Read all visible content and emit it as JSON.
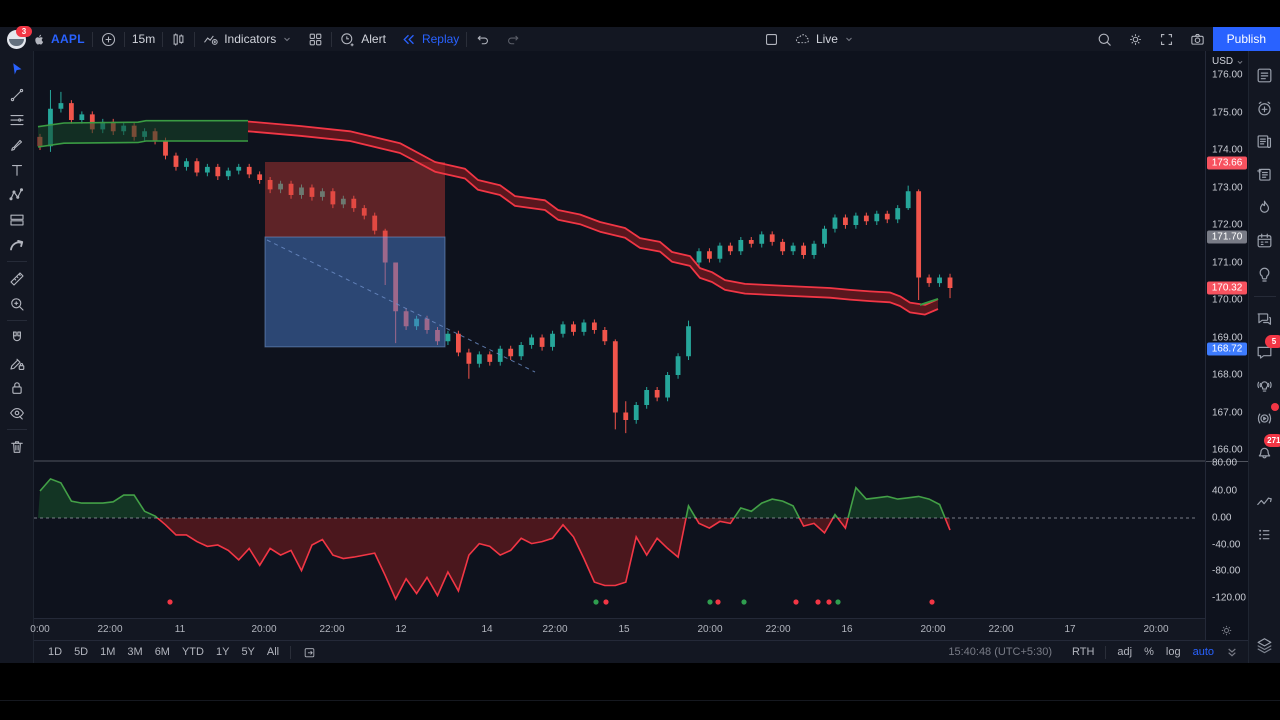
{
  "topbar": {
    "avatar_badge": "3",
    "symbol": "AAPL",
    "interval": "15m",
    "indicators_label": "Indicators",
    "alert_label": "Alert",
    "replay_label": "Replay",
    "live_label": "Live",
    "publish_label": "Publish"
  },
  "left_toolbar": {
    "tools": [
      {
        "name": "cursor",
        "active": true
      },
      {
        "name": "trend-line"
      },
      {
        "name": "fib-retracement"
      },
      {
        "name": "brush"
      },
      {
        "name": "text-tool"
      },
      {
        "name": "xabcd-pattern"
      },
      {
        "name": "long-position"
      },
      {
        "name": "arrow-marker",
        "divider_after": true
      },
      {
        "name": "ruler"
      },
      {
        "name": "zoom-in",
        "divider_after": true
      },
      {
        "name": "magnet"
      },
      {
        "name": "edit-lock"
      },
      {
        "name": "lock-all"
      },
      {
        "name": "hide-all",
        "divider_after": true
      },
      {
        "name": "remove-drawings"
      }
    ]
  },
  "right_sidebar": {
    "items": [
      {
        "name": "watchlist"
      },
      {
        "name": "alert-manager"
      },
      {
        "name": "news"
      },
      {
        "name": "notes"
      },
      {
        "name": "hotlists"
      },
      {
        "name": "calendar"
      },
      {
        "name": "ideas",
        "divider_after": true
      },
      {
        "name": "chats"
      },
      {
        "name": "private-chat",
        "badge": "5"
      },
      {
        "name": "ideas-stream"
      },
      {
        "name": "live-streams",
        "dot": true
      },
      {
        "name": "notifications",
        "badge": "271",
        "gap_after": true
      },
      {
        "name": "pine-editor"
      },
      {
        "name": "dom-panel"
      }
    ],
    "bottom_item": {
      "name": "object-tree"
    }
  },
  "price_axis": {
    "currency": "USD",
    "labels": [
      {
        "text": "176.00",
        "y": 75
      },
      {
        "text": "175.00",
        "y": 113
      },
      {
        "text": "174.00",
        "y": 150
      },
      {
        "text": "173.00",
        "y": 188
      },
      {
        "text": "172.00",
        "y": 225
      },
      {
        "text": "171.00",
        "y": 263
      },
      {
        "text": "170.00",
        "y": 300
      },
      {
        "text": "169.00",
        "y": 338
      },
      {
        "text": "168.00",
        "y": 375
      },
      {
        "text": "167.00",
        "y": 413
      },
      {
        "text": "166.00",
        "y": 450
      }
    ],
    "badges": [
      {
        "text": "173.66",
        "y": 163,
        "color": "#f7525f",
        "text_color": "#fff"
      },
      {
        "text": "171.70",
        "y": 237,
        "color": "#787b86",
        "text_color": "#fff"
      },
      {
        "text": "170.32",
        "y": 288,
        "color": "#f7525f",
        "text_color": "#fff"
      },
      {
        "text": "168.72",
        "y": 349,
        "color": "#3d7bfd",
        "text_color": "#fff"
      }
    ],
    "lower_labels": [
      {
        "text": "80.00",
        "y": 463
      },
      {
        "text": "40.00",
        "y": 491
      },
      {
        "text": "0.00",
        "y": 518
      },
      {
        "text": "-40.00",
        "y": 545
      },
      {
        "text": "-80.00",
        "y": 571
      },
      {
        "text": "-120.00",
        "y": 598
      }
    ]
  },
  "time_axis": {
    "labels": [
      {
        "text": "0:00",
        "x": 40
      },
      {
        "text": "22:00",
        "x": 110
      },
      {
        "text": "11",
        "x": 180
      },
      {
        "text": "20:00",
        "x": 264
      },
      {
        "text": "22:00",
        "x": 332
      },
      {
        "text": "12",
        "x": 401
      },
      {
        "text": "14",
        "x": 487
      },
      {
        "text": "22:00",
        "x": 555
      },
      {
        "text": "15",
        "x": 624
      },
      {
        "text": "20:00",
        "x": 710
      },
      {
        "text": "22:00",
        "x": 778
      },
      {
        "text": "16",
        "x": 847
      },
      {
        "text": "20:00",
        "x": 933
      },
      {
        "text": "22:00",
        "x": 1001
      },
      {
        "text": "17",
        "x": 1070
      },
      {
        "text": "20:00",
        "x": 1156
      }
    ]
  },
  "bottom_toolbar": {
    "ranges": [
      "1D",
      "5D",
      "1M",
      "3M",
      "6M",
      "YTD",
      "1Y",
      "5Y",
      "All"
    ],
    "clock": "15:40:48 (UTC+5:30)",
    "session": "RTH",
    "adj": "adj",
    "percent": "%",
    "log": "log",
    "auto": "auto"
  },
  "chart_data": {
    "type": "candlestick",
    "symbol": "AAPL",
    "interval": "15m",
    "price_pane": {
      "ylim": [
        165.7,
        176.64
      ],
      "candles": {
        "x0": 6,
        "dx": 10.46,
        "up_color": "#26a69a",
        "down_color": "#f1544b",
        "ohlc": [
          [
            174.35,
            174.1
          ],
          [
            174.1,
            175.1,
            175.6,
            173.95
          ],
          [
            175.1,
            175.25,
            175.55
          ],
          [
            175.25,
            174.8
          ],
          [
            174.8,
            174.95
          ],
          [
            174.95,
            174.55
          ],
          [
            174.55,
            174.75
          ],
          [
            174.75,
            174.5
          ],
          [
            174.5,
            174.65
          ],
          [
            174.65,
            174.35
          ],
          [
            174.35,
            174.5
          ],
          [
            174.5,
            174.25
          ],
          [
            174.25,
            173.85
          ],
          [
            173.85,
            173.55
          ],
          [
            173.55,
            173.7
          ],
          [
            173.7,
            173.4
          ],
          [
            173.4,
            173.55
          ],
          [
            173.55,
            173.3
          ],
          [
            173.3,
            173.45
          ],
          [
            173.45,
            173.55
          ],
          [
            173.55,
            173.35
          ],
          [
            173.35,
            173.2
          ],
          [
            173.2,
            172.95
          ],
          [
            172.95,
            173.1
          ],
          [
            173.1,
            172.8
          ],
          [
            172.8,
            173.0
          ],
          [
            173.0,
            172.75
          ],
          [
            172.75,
            172.9
          ],
          [
            172.9,
            172.55
          ],
          [
            172.55,
            172.7
          ],
          [
            172.7,
            172.45
          ],
          [
            172.45,
            172.25
          ],
          [
            172.25,
            171.85
          ],
          [
            171.85,
            171.0,
            171.9,
            170.4
          ],
          [
            171.0,
            169.7,
            171.0,
            168.85
          ],
          [
            169.7,
            169.3
          ],
          [
            169.3,
            169.5
          ],
          [
            169.5,
            169.2
          ],
          [
            169.2,
            168.9
          ],
          [
            168.9,
            169.1
          ],
          [
            169.1,
            168.6
          ],
          [
            168.6,
            168.3,
            168.7,
            167.9
          ],
          [
            168.3,
            168.55
          ],
          [
            168.55,
            168.35
          ],
          [
            168.35,
            168.7
          ],
          [
            168.7,
            168.5
          ],
          [
            168.5,
            168.8
          ],
          [
            168.8,
            169.0
          ],
          [
            169.0,
            168.75
          ],
          [
            168.75,
            169.1
          ],
          [
            169.1,
            169.35
          ],
          [
            169.35,
            169.15
          ],
          [
            169.15,
            169.4
          ],
          [
            169.4,
            169.2
          ],
          [
            169.2,
            168.9
          ],
          [
            168.9,
            167.0,
            168.95,
            166.55
          ],
          [
            167.0,
            166.8,
            167.3,
            166.45
          ],
          [
            166.8,
            167.2
          ],
          [
            167.2,
            167.6
          ],
          [
            167.6,
            167.4
          ],
          [
            167.4,
            168.0
          ],
          [
            168.0,
            168.5
          ],
          [
            168.5,
            169.3,
            169.45,
            168.4
          ],
          [
            171.0,
            171.3
          ],
          [
            171.3,
            171.1
          ],
          [
            171.1,
            171.45
          ],
          [
            171.45,
            171.3
          ],
          [
            171.3,
            171.6
          ],
          [
            171.6,
            171.5
          ],
          [
            171.5,
            171.75
          ],
          [
            171.75,
            171.55
          ],
          [
            171.55,
            171.3
          ],
          [
            171.3,
            171.45
          ],
          [
            171.45,
            171.2
          ],
          [
            171.2,
            171.5
          ],
          [
            171.5,
            171.9
          ],
          [
            171.9,
            172.2
          ],
          [
            172.2,
            172.0
          ],
          [
            172.0,
            172.25
          ],
          [
            172.25,
            172.1
          ],
          [
            172.1,
            172.3
          ],
          [
            172.3,
            172.15
          ],
          [
            172.15,
            172.45
          ],
          [
            172.45,
            172.9,
            173.05,
            172.4
          ],
          [
            172.9,
            170.6,
            172.95,
            170.0
          ],
          [
            170.6,
            170.45
          ],
          [
            170.45,
            170.6
          ],
          [
            170.6,
            170.32,
            170.7,
            170.05
          ]
        ]
      },
      "ribbon": {
        "green_top": [
          [
            4,
            174.62
          ],
          [
            30,
            174.72
          ],
          [
            104,
            174.74
          ],
          [
            112,
            174.78
          ],
          [
            214,
            174.78
          ]
        ],
        "green_bottom": [
          [
            4,
            174.08
          ],
          [
            30,
            174.18
          ],
          [
            104,
            174.2
          ],
          [
            112,
            174.24
          ],
          [
            214,
            174.24
          ]
        ],
        "red_top": [
          [
            214,
            174.76
          ],
          [
            266,
            174.64
          ],
          [
            316,
            174.5
          ],
          [
            366,
            174.18
          ],
          [
            401,
            173.68
          ],
          [
            431,
            173.5
          ],
          [
            444,
            173.2
          ],
          [
            466,
            173.06
          ],
          [
            481,
            172.77
          ],
          [
            511,
            172.66
          ],
          [
            524,
            172.4
          ],
          [
            546,
            172.28
          ],
          [
            566,
            172.08
          ],
          [
            591,
            171.92
          ],
          [
            606,
            171.65
          ],
          [
            626,
            171.55
          ],
          [
            638,
            171.28
          ],
          [
            656,
            171.17
          ],
          [
            666,
            170.85
          ],
          [
            678,
            170.74
          ],
          [
            691,
            170.53
          ],
          [
            711,
            170.43
          ],
          [
            756,
            170.37
          ],
          [
            796,
            170.32
          ],
          [
            816,
            170.27
          ],
          [
            836,
            170.23
          ],
          [
            856,
            170.2
          ],
          [
            866,
            170.1
          ],
          [
            876,
            169.93
          ],
          [
            891,
            169.87
          ],
          [
            904,
            170.02
          ]
        ],
        "red_thickness": 0.26,
        "end_green_segment": [
          [
            886,
            169.87
          ],
          [
            904,
            170.03
          ]
        ],
        "green_color": "#3a9b43",
        "red_color": "#f23645"
      },
      "position_tool": {
        "red_zone": {
          "x1": 231,
          "x2": 411,
          "price_top": 173.68,
          "price_bottom": 171.68,
          "fill": "rgba(204,60,56,0.42)"
        },
        "blue_zone": {
          "x1": 231,
          "x2": 411,
          "price_top": 171.68,
          "price_bottom": 168.75,
          "fill": "rgba(74,124,204,0.5)"
        },
        "dashed_line": {
          "from": [
            233,
            171.6
          ],
          "to": [
            501,
            168.08
          ],
          "color": "#6e8fc9"
        }
      }
    },
    "oscillator_pane": {
      "ylim": [
        -130,
        85
      ],
      "x0": 6,
      "dx": 10.46,
      "values": [
        40,
        58,
        52,
        25,
        22,
        22,
        22,
        24,
        34,
        34,
        10,
        3,
        -10,
        -25,
        -25,
        -35,
        -42,
        -40,
        -48,
        -62,
        -45,
        -70,
        -45,
        -55,
        -48,
        -78,
        -40,
        -32,
        -55,
        -60,
        -58,
        -55,
        -52,
        -85,
        -120,
        -90,
        -112,
        -88,
        -115,
        -80,
        -108,
        -55,
        -38,
        -42,
        -55,
        -48,
        -30,
        -38,
        -35,
        -30,
        -10,
        -28,
        -60,
        -95,
        -100,
        -100,
        -95,
        -28,
        -55,
        -30,
        -45,
        -58,
        18,
        -8,
        -15,
        -5,
        -8,
        15,
        10,
        22,
        28,
        25,
        18,
        -12,
        -8,
        -22,
        5,
        -15,
        45,
        28,
        30,
        32,
        28,
        30,
        32,
        28,
        20,
        -18
      ],
      "pos_line": "#43a047",
      "pos_fill": "rgba(23,82,41,0.55)",
      "neg_line": "#f23645",
      "neg_fill": "rgba(136,28,30,0.5)",
      "dots": [
        [
          136,
          "r"
        ],
        [
          562,
          "g"
        ],
        [
          572,
          "r"
        ],
        [
          676,
          "g"
        ],
        [
          684,
          "r"
        ],
        [
          710,
          "g"
        ],
        [
          762,
          "r"
        ],
        [
          784,
          "r"
        ],
        [
          795,
          "r"
        ],
        [
          804,
          "g"
        ],
        [
          898,
          "r"
        ]
      ]
    }
  }
}
